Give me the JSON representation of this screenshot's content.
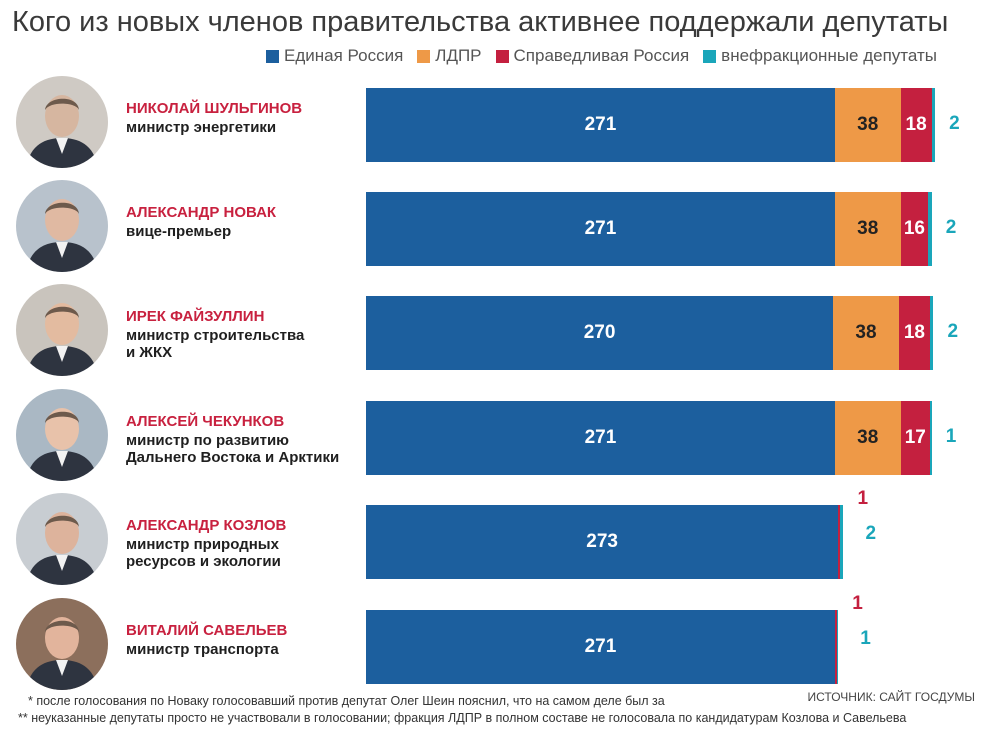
{
  "chart_data": {
    "type": "bar",
    "orientation": "horizontal",
    "stacked": true,
    "title": "Кого из новых членов правительства активнее поддержали депутаты",
    "colors": {
      "Единая Россия": "#1c5f9e",
      "ЛДПР": "#ee9947",
      "Справедливая Россия": "#c4203f",
      "внефракционные депутаты": "#1aa6ba"
    },
    "legend": [
      "Единая Россия",
      "ЛДПР",
      "Справедливая Россия",
      "внефракционные депутаты"
    ],
    "legend_position": "top-right",
    "categories": [
      "НИКОЛАЙ ШУЛЬГИНОВ",
      "АЛЕКСАНДР НОВАК",
      "ИРЕК ФАЙЗУЛЛИН",
      "АЛЕКСЕЙ ЧЕКУНКОВ",
      "АЛЕКСАНДР КОЗЛОВ",
      "ВИТАЛИЙ САВЕЛЬЕВ"
    ],
    "series": [
      {
        "name": "Единая Россия",
        "values": [
          271,
          271,
          270,
          271,
          273,
          271
        ]
      },
      {
        "name": "ЛДПР",
        "values": [
          38,
          38,
          38,
          38,
          0,
          0
        ]
      },
      {
        "name": "Справедливая Россия",
        "values": [
          18,
          16,
          18,
          17,
          1,
          1
        ]
      },
      {
        "name": "внефракционные депутаты",
        "values": [
          2,
          2,
          2,
          1,
          2,
          1
        ]
      }
    ]
  },
  "people": [
    {
      "name": "НИКОЛАЙ ШУЛЬГИНОВ",
      "role": [
        "министр энергетики"
      ]
    },
    {
      "name": "АЛЕКСАНДР НОВАК",
      "role": [
        "вице-премьер"
      ]
    },
    {
      "name": "ИРЕК ФАЙЗУЛЛИН",
      "role": [
        "министр строительства",
        "и ЖКХ"
      ]
    },
    {
      "name": "АЛЕКСЕЙ ЧЕКУНКОВ",
      "role": [
        "министр по развитию",
        "Дальнего Востока и Арктики"
      ]
    },
    {
      "name": "АЛЕКСАНДР КОЗЛОВ",
      "role": [
        "министр природных",
        "ресурсов и экологии"
      ]
    },
    {
      "name": "ВИТАЛИЙ САВЕЛЬЕВ",
      "role": [
        "министр транспорта"
      ]
    }
  ],
  "footnotes": [
    "*  после голосования по Новаку голосовавший против депутат Олег Шеин пояснил, что на самом деле был за",
    "**  неуказанные депутаты просто не участвовали в голосовании; фракция ЛДПР в полном составе не голосовала по кандидатурам Козлова и Савельева"
  ],
  "source": "ИСТОЧНИК: САЙТ ГОСДУМЫ"
}
